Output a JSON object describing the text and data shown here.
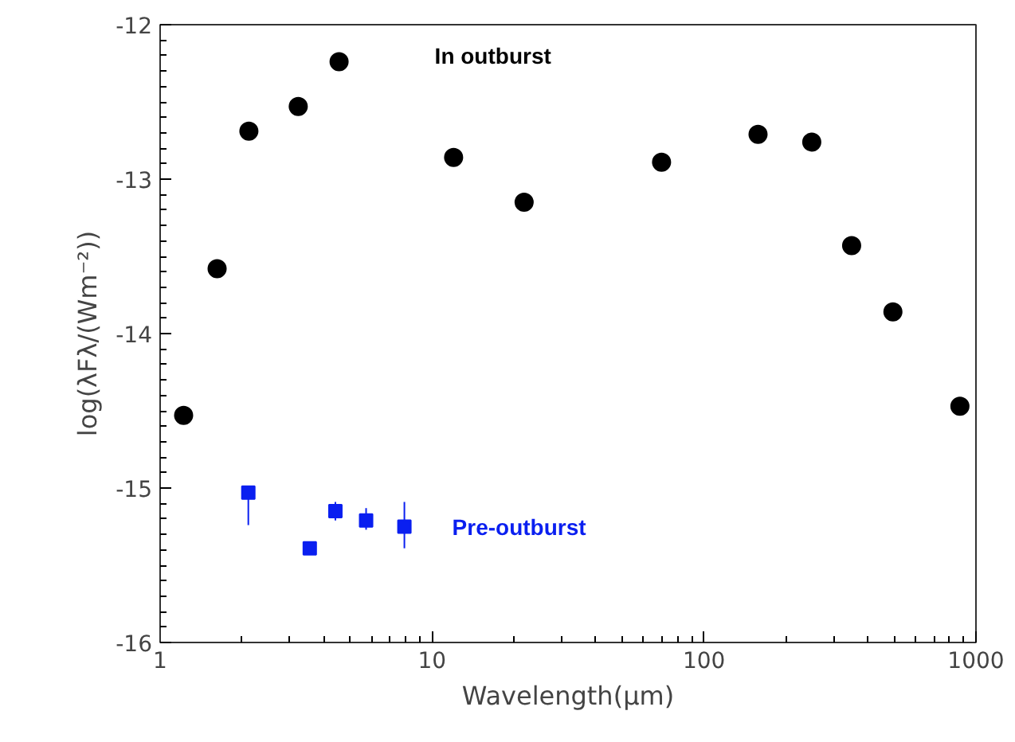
{
  "chart_data": {
    "type": "scatter",
    "xlabel": "Wavelength(μm)",
    "ylabel": "log(λFλ/(Wm⁻²))",
    "log": "x",
    "xlim": [
      1,
      1000
    ],
    "xticks": [
      1,
      10,
      100,
      1000
    ],
    "ylim": [
      -16,
      -12
    ],
    "yticks": [
      -16,
      -15,
      -14,
      -13,
      -12
    ],
    "grid": false,
    "series": [
      {
        "name": "In outburst",
        "color": "#000000",
        "marker": "circle",
        "x": [
          1.22,
          1.62,
          2.12,
          3.22,
          4.55,
          12.0,
          21.8,
          69.8,
          158,
          249,
          349,
          495,
          873
        ],
        "values": [
          -14.53,
          -13.58,
          -12.69,
          -12.53,
          -12.24,
          -12.86,
          -13.15,
          -12.89,
          -12.71,
          -12.76,
          -13.43,
          -13.86,
          -14.47
        ],
        "errors": [
          null,
          null,
          0.05,
          null,
          null,
          null,
          null,
          null,
          null,
          null,
          null,
          null,
          0.05
        ]
      },
      {
        "name": "Pre-outburst",
        "color": "#0a1ff0",
        "marker": "square",
        "x": [
          2.11,
          3.55,
          4.41,
          5.72,
          7.91
        ],
        "values": [
          -15.03,
          -15.39,
          -15.15,
          -15.21,
          -15.25
        ],
        "errors": [
          [
            -15.24,
            -15.03
          ],
          null,
          [
            -15.21,
            -15.09
          ],
          [
            -15.27,
            -15.13
          ],
          [
            -15.39,
            -15.09
          ]
        ]
      }
    ]
  }
}
